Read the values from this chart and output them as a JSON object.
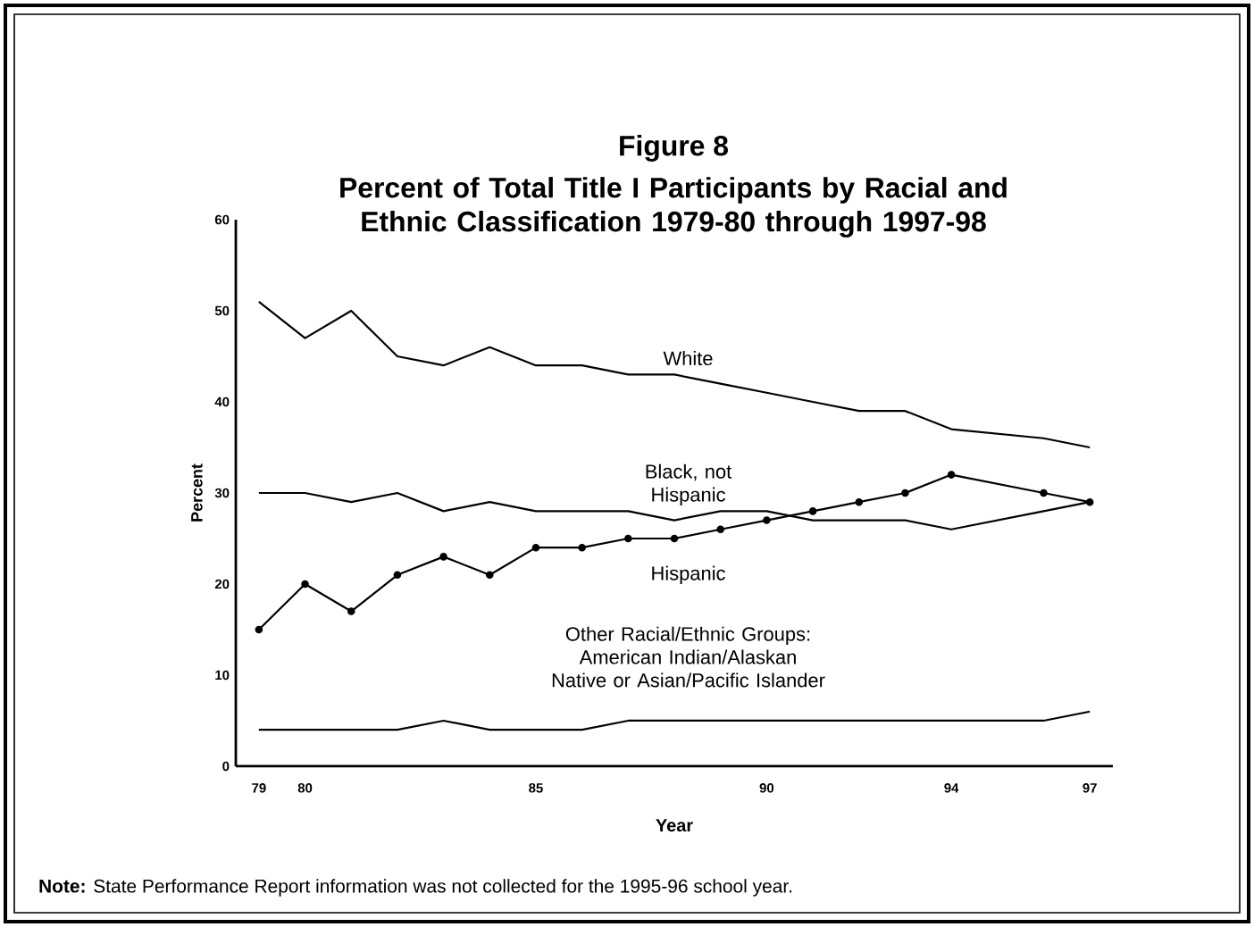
{
  "chart_data": {
    "type": "line",
    "title": "Figure 8",
    "subtitle": "Percent of Total Title I Participants by Racial and Ethnic Classification 1979-80 through 1997-98",
    "xlabel": "Year",
    "ylabel": "Percent",
    "x": [
      79,
      80,
      81,
      82,
      83,
      84,
      85,
      86,
      87,
      88,
      89,
      90,
      91,
      92,
      93,
      94,
      96,
      97
    ],
    "series": [
      {
        "name": "White",
        "color": "#000000",
        "marker": "none",
        "values": [
          51,
          47,
          50,
          45,
          44,
          46,
          44,
          44,
          43,
          43,
          42,
          41,
          40,
          39,
          39,
          37,
          36,
          35
        ]
      },
      {
        "name": "Black, not Hispanic",
        "color": "#000000",
        "marker": "none",
        "values": [
          30,
          30,
          29,
          30,
          28,
          29,
          28,
          28,
          28,
          27,
          28,
          28,
          27,
          27,
          27,
          26,
          28,
          29
        ]
      },
      {
        "name": "Hispanic",
        "color": "#000000",
        "marker": "circle",
        "values": [
          15,
          20,
          17,
          21,
          23,
          21,
          24,
          24,
          25,
          25,
          26,
          27,
          28,
          29,
          30,
          32,
          30,
          29
        ]
      },
      {
        "name": "Other Racial/Ethnic Groups: American Indian/Alaskan Native or Asian/Pacific Islander",
        "color": "#000000",
        "marker": "none",
        "values": [
          4,
          4,
          4,
          4,
          5,
          4,
          4,
          4,
          5,
          5,
          5,
          5,
          5,
          5,
          5,
          5,
          5,
          6
        ]
      }
    ],
    "xlim": [
      78.5,
      97.5
    ],
    "xticks": [
      79,
      80,
      85,
      90,
      94,
      97
    ],
    "ylim": [
      0,
      60
    ],
    "yticks": [
      0,
      10,
      20,
      30,
      40,
      50,
      60
    ],
    "grid": false,
    "legend": false,
    "line_style": "solid",
    "annotations": [
      "**Note:** State Performance Report information was not collected for the 1995-96 school year."
    ]
  }
}
